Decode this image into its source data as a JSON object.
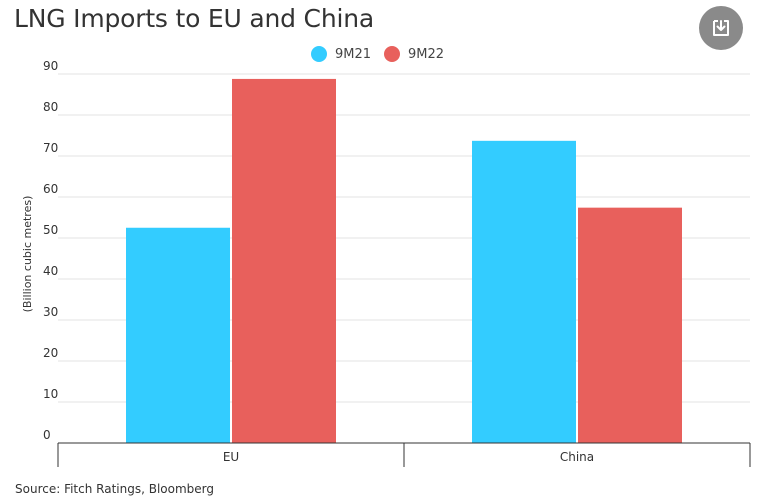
{
  "chart_data": {
    "type": "bar",
    "title": "LNG Imports to EU and China",
    "ylabel": "(Billion cubic metres)",
    "xlabel": "",
    "categories": [
      "EU",
      "China"
    ],
    "series": [
      {
        "name": "9M21",
        "color": "#33CCFF",
        "values": [
          52.5,
          73.7
        ]
      },
      {
        "name": "9M22",
        "color": "#E8605C",
        "values": [
          88.8,
          57.4
        ]
      }
    ],
    "ylim": [
      0,
      90
    ],
    "yticks": [
      "0",
      "10",
      "20",
      "30",
      "40",
      "50",
      "60",
      "70",
      "80",
      "90"
    ],
    "grid": true,
    "legend_position": "top-center"
  },
  "source": "Source: Fitch Ratings, Bloomberg",
  "icons": {
    "download": "download-icon"
  }
}
